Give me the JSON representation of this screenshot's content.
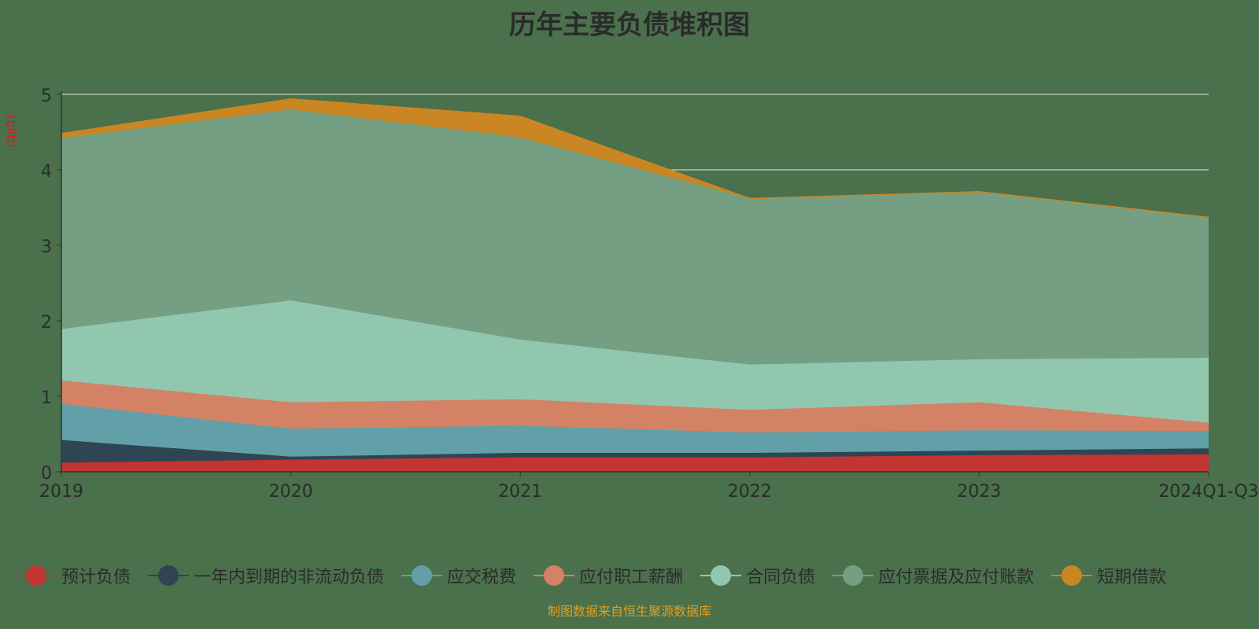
{
  "chart_data": {
    "type": "area",
    "stacked": true,
    "title": "历年主要负债堆积图",
    "unit_label": "(亿元)",
    "categories": [
      "2019",
      "2020",
      "2021",
      "2022",
      "2023",
      "2024Q1-Q3"
    ],
    "ylim": [
      0,
      5
    ],
    "yticks": [
      "0",
      "1",
      "2",
      "3",
      "4",
      "5"
    ],
    "grid": true,
    "legend_position": "bottom",
    "series": [
      {
        "name": "预计负债",
        "color": "#c23531",
        "values": [
          0.12,
          0.16,
          0.19,
          0.19,
          0.22,
          0.23
        ]
      },
      {
        "name": "一年内到期的非流动负债",
        "color": "#2f4554",
        "values": [
          0.3,
          0.04,
          0.06,
          0.06,
          0.06,
          0.08
        ]
      },
      {
        "name": "应交税费",
        "color": "#61a0a8",
        "values": [
          0.48,
          0.37,
          0.36,
          0.27,
          0.27,
          0.23
        ]
      },
      {
        "name": "应付职工薪酬",
        "color": "#d48265",
        "values": [
          0.31,
          0.35,
          0.35,
          0.3,
          0.37,
          0.11
        ]
      },
      {
        "name": "合同负债",
        "color": "#91c7ae",
        "values": [
          0.68,
          1.35,
          0.79,
          0.6,
          0.57,
          0.86
        ]
      },
      {
        "name": "应付票据及应付账款",
        "color": "#749f83",
        "values": [
          2.53,
          2.53,
          2.68,
          2.2,
          2.22,
          1.86
        ]
      },
      {
        "name": "短期借款",
        "color": "#ca8622",
        "values": [
          0.06,
          0.14,
          0.28,
          0.0,
          0.0,
          0.0
        ]
      }
    ]
  },
  "source_text": "制图数据来自恒生聚源数据库"
}
